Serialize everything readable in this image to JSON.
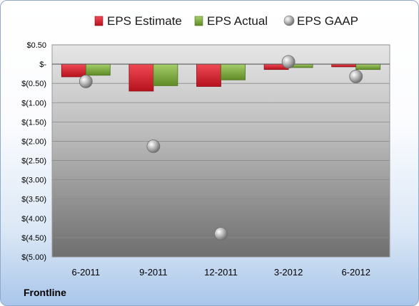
{
  "caption": "Frontline",
  "chart_data": {
    "type": "bar",
    "categories": [
      "6-2011",
      "9-2011",
      "12-2011",
      "3-2012",
      "6-2012"
    ],
    "series": [
      {
        "name": "EPS Estimate",
        "values": [
          -0.33,
          -0.7,
          -0.58,
          -0.14,
          -0.07
        ],
        "color": "#cc1f2e"
      },
      {
        "name": "EPS Actual",
        "values": [
          -0.29,
          -0.56,
          -0.41,
          -0.09,
          -0.14
        ],
        "color": "#7aa43a"
      }
    ],
    "points": {
      "name": "EPS GAAP",
      "values": [
        -0.45,
        -2.13,
        -4.4,
        0.06,
        -0.32
      ],
      "color": "#9a9a9a"
    },
    "ylim": [
      -5.0,
      0.5
    ],
    "yticks": [
      "$0.50",
      "$-",
      "$(0.50)",
      "$(1.00)",
      "$(1.50)",
      "$(2.00)",
      "$(2.50)",
      "$(3.00)",
      "$(3.50)",
      "$(4.00)",
      "$(4.50)",
      "$(5.00)"
    ],
    "ytick_values": [
      0.5,
      0,
      -0.5,
      -1.0,
      -1.5,
      -2.0,
      -2.5,
      -3.0,
      -3.5,
      -4.0,
      -4.5,
      -5.0
    ],
    "legend_position": "top",
    "grid": true
  }
}
